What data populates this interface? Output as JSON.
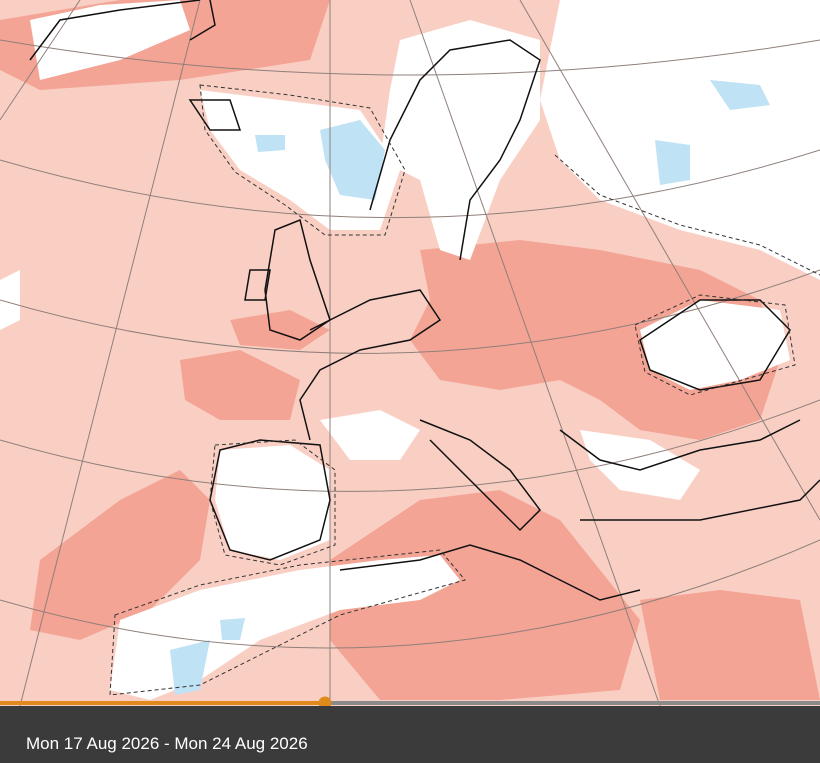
{
  "timeline": {
    "label": "Mon 17 Aug 2026 - Mon 24 Aug 2026"
  }
}
